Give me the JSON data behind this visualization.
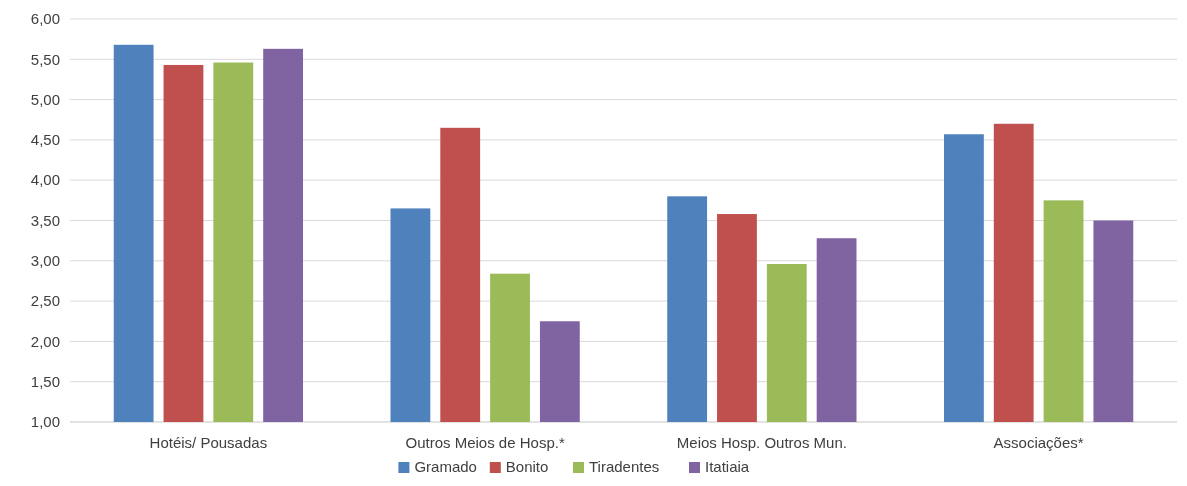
{
  "chart_data": {
    "type": "bar",
    "categories": [
      "Hotéis/ Pousadas",
      "Outros Meios de Hosp.*",
      "Meios Hosp. Outros Mun.",
      "Associações*"
    ],
    "series": [
      {
        "name": "Gramado",
        "color": "#4f81bd",
        "values": [
          5.68,
          3.65,
          3.8,
          4.57
        ]
      },
      {
        "name": "Bonito",
        "color": "#c0504d",
        "values": [
          5.43,
          4.65,
          3.58,
          4.7
        ]
      },
      {
        "name": "Tiradentes",
        "color": "#9bbb59",
        "values": [
          5.46,
          2.84,
          2.96,
          3.75
        ]
      },
      {
        "name": "Itatiaia",
        "color": "#8064a2",
        "values": [
          5.63,
          2.25,
          3.28,
          3.5
        ]
      }
    ],
    "ylim": [
      1,
      6
    ],
    "yticks": [
      {
        "value": 1,
        "label": "1,00"
      },
      {
        "value": 1.5,
        "label": "1,50"
      },
      {
        "value": 2,
        "label": "2,00"
      },
      {
        "value": 2.5,
        "label": "2,50"
      },
      {
        "value": 3,
        "label": "3,00"
      },
      {
        "value": 3.5,
        "label": "3,50"
      },
      {
        "value": 4,
        "label": "4,00"
      },
      {
        "value": 4.5,
        "label": "4,50"
      },
      {
        "value": 5,
        "label": "5,00"
      },
      {
        "value": 5.5,
        "label": "5,50"
      },
      {
        "value": 6,
        "label": "6,00"
      }
    ],
    "grid": "y",
    "legend": "bottom"
  }
}
